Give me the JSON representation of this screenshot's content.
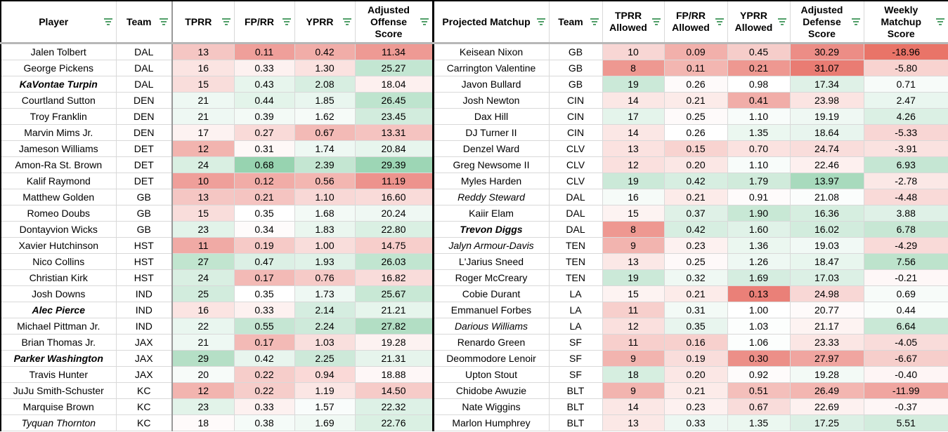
{
  "headers": [
    "Player",
    "Team",
    "TPRR",
    "FP/RR",
    "YPRR",
    "Adjusted Offense Score",
    "Projected Matchup",
    "Team",
    "TPRR Allowed",
    "FP/RR Allowed",
    "YPRR Allowed",
    "Adjusted Defense Score",
    "Weekly Matchup Score"
  ],
  "rows": [
    {
      "player": "Jalen Tolbert",
      "ps": "n",
      "team": "DAL",
      "tprr": "13",
      "fprr": "0.11",
      "yprr": "0.42",
      "aos": "11.34",
      "opp": "Keisean Nixon",
      "os": "n",
      "oteam": "GB",
      "tprra": "10",
      "fprra": "0.09",
      "yprra": "0.45",
      "ads": "30.29",
      "wms": "-18.96",
      "bg": [
        "#f5c6c3",
        "#ef9f9a",
        "#f1ada8",
        "#ee9a94",
        "#f8d6d4",
        "#f2b0ab",
        "#f6cdca",
        "#ec8d86",
        "#e97468"
      ]
    },
    {
      "player": "George Pickens",
      "ps": "n",
      "team": "DAL",
      "tprr": "16",
      "fprr": "0.33",
      "yprr": "1.30",
      "aos": "25.27",
      "opp": "Carrington Valentine",
      "os": "n",
      "oteam": "GB",
      "tprra": "8",
      "fprra": "0.11",
      "yprra": "0.21",
      "ads": "31.07",
      "wms": "-5.80",
      "bg": [
        "#fbe4e2",
        "#fdf1f0",
        "#fbe2e0",
        "#c3e6d2",
        "#ee9891",
        "#f3b6b1",
        "#ee9891",
        "#e97c73",
        "#f8d3d0"
      ]
    },
    {
      "player": "KaVontae Turpin",
      "ps": "bi",
      "team": "DAL",
      "tprr": "15",
      "fprr": "0.43",
      "yprr": "2.08",
      "aos": "18.04",
      "opp": "Javon Bullard",
      "os": "n",
      "oteam": "GB",
      "tprra": "19",
      "fprra": "0.26",
      "yprra": "0.98",
      "ads": "17.34",
      "wms": "0.71",
      "bg": [
        "#f9dddb",
        "#e7f5ed",
        "#d7eee1",
        "#fdf0ef",
        "#cbe9d8",
        "#fefafa",
        "#ffffff",
        "#dff1e7",
        "#f7fbf9"
      ]
    },
    {
      "player": "Courtland Sutton",
      "ps": "n",
      "team": "DEN",
      "tprr": "21",
      "fprr": "0.44",
      "yprr": "1.85",
      "aos": "26.45",
      "opp": "Josh Newton",
      "os": "n",
      "oteam": "CIN",
      "tprra": "14",
      "fprra": "0.21",
      "yprra": "0.41",
      "ads": "23.98",
      "wms": "2.47",
      "bg": [
        "#eef8f3",
        "#e3f4ea",
        "#e9f6ef",
        "#bee4ce",
        "#fbe7e5",
        "#fcebe9",
        "#f1ada8",
        "#fbe4e2",
        "#e9f6ef"
      ]
    },
    {
      "player": "Troy Franklin",
      "ps": "n",
      "team": "DEN",
      "tprr": "21",
      "fprr": "0.39",
      "yprr": "1.62",
      "aos": "23.45",
      "opp": "Dax Hill",
      "os": "n",
      "oteam": "CIN",
      "tprra": "17",
      "fprra": "0.25",
      "yprra": "1.10",
      "ads": "19.19",
      "wms": "4.26",
      "bg": [
        "#eef8f3",
        "#f3faf6",
        "#f6fbf8",
        "#d2ecdd",
        "#e4f4eb",
        "#fefafa",
        "#f8fcfa",
        "#eff8f3",
        "#dbf0e4"
      ]
    },
    {
      "player": "Marvin Mims Jr.",
      "ps": "n",
      "team": "DEN",
      "tprr": "17",
      "fprr": "0.27",
      "yprr": "0.67",
      "aos": "13.31",
      "opp": "DJ Turner II",
      "os": "n",
      "oteam": "CIN",
      "tprra": "14",
      "fprra": "0.26",
      "yprra": "1.35",
      "ads": "18.64",
      "wms": "-5.33",
      "bg": [
        "#fdf2f1",
        "#f9dad8",
        "#f3bab6",
        "#f5c3c0",
        "#fbe7e5",
        "#ffffff",
        "#ebf7f0",
        "#e8f5ee",
        "#f8d6d4"
      ]
    },
    {
      "player": "Jameson Williams",
      "ps": "n",
      "team": "DET",
      "tprr": "12",
      "fprr": "0.31",
      "yprr": "1.74",
      "aos": "20.84",
      "opp": "Denzel Ward",
      "os": "n",
      "oteam": "CLV",
      "tprra": "13",
      "fprra": "0.15",
      "yprra": "0.70",
      "ads": "24.74",
      "wms": "-3.91",
      "bg": [
        "#f2b4af",
        "#fef8f7",
        "#eef8f3",
        "#e7f5ed",
        "#fbe2e0",
        "#f8d3d0",
        "#fbe2e0",
        "#f9dddb",
        "#fae2e0"
      ]
    },
    {
      "player": "Amon-Ra St. Brown",
      "ps": "n",
      "team": "DET",
      "tprr": "24",
      "fprr": "0.68",
      "yprr": "2.39",
      "aos": "29.39",
      "opp": "Greg Newsome II",
      "os": "n",
      "oteam": "CLV",
      "tprra": "12",
      "fprra": "0.20",
      "yprra": "1.10",
      "ads": "22.46",
      "wms": "6.93",
      "bg": [
        "#d9efe2",
        "#97d3b0",
        "#c4e6d2",
        "#9dd6b5",
        "#fae0de",
        "#fbe7e5",
        "#f8fcfa",
        "#fdf0ef",
        "#c5e6d3"
      ]
    },
    {
      "player": "Kalif Raymond",
      "ps": "n",
      "team": "DET",
      "tprr": "10",
      "fprr": "0.12",
      "yprr": "0.56",
      "aos": "11.19",
      "opp": "Myles Harden",
      "os": "n",
      "oteam": "CLV",
      "tprra": "19",
      "fprra": "0.42",
      "yprra": "1.79",
      "ads": "13.97",
      "wms": "-2.78",
      "bg": [
        "#ef9f9a",
        "#f1aca7",
        "#f3b6b1",
        "#ed938d",
        "#cbe9d8",
        "#d7eee1",
        "#d0ebdb",
        "#a8dabd",
        "#fbe8e6"
      ]
    },
    {
      "player": "Matthew Golden",
      "ps": "n",
      "team": "GB",
      "tprr": "13",
      "fprr": "0.21",
      "yprr": "1.10",
      "aos": "16.60",
      "opp": "Reddy Steward",
      "os": "it",
      "oteam": "DAL",
      "tprra": "16",
      "fprra": "0.21",
      "yprra": "0.91",
      "ads": "21.08",
      "wms": "-4.48",
      "bg": [
        "#f5c6c3",
        "#f5c4c1",
        "#f8d8d6",
        "#f9dbd9",
        "#f6fbf8",
        "#fcebe9",
        "#fefbfb",
        "#fbfdfc",
        "#f9dad8"
      ]
    },
    {
      "player": "Romeo Doubs",
      "ps": "n",
      "team": "GB",
      "tprr": "15",
      "fprr": "0.35",
      "yprr": "1.68",
      "aos": "20.24",
      "opp": "Kaiir Elam",
      "os": "n",
      "oteam": "DAL",
      "tprra": "15",
      "fprra": "0.37",
      "yprra": "1.90",
      "ads": "16.36",
      "wms": "3.88",
      "bg": [
        "#f9dddb",
        "#ffffff",
        "#f3faf6",
        "#eff8f3",
        "#fdf3f2",
        "#dff1e7",
        "#c8e8d5",
        "#d6eee0",
        "#dff1e7"
      ]
    },
    {
      "player": "Dontayvion Wicks",
      "ps": "n",
      "team": "GB",
      "tprr": "23",
      "fprr": "0.34",
      "yprr": "1.83",
      "aos": "22.80",
      "opp": "Trevon Diggs",
      "os": "bi",
      "oteam": "DAL",
      "tprra": "8",
      "fprra": "0.42",
      "yprra": "1.60",
      "ads": "16.02",
      "wms": "6.78",
      "bg": [
        "#e2f3e9",
        "#fefbfb",
        "#eaf6ef",
        "#daf0e3",
        "#ee9891",
        "#d7eee1",
        "#e0f2e8",
        "#d2ecdd",
        "#c7e7d4"
      ]
    },
    {
      "player": "Xavier Hutchinson",
      "ps": "n",
      "team": "HST",
      "tprr": "11",
      "fprr": "0.19",
      "yprr": "1.00",
      "aos": "14.75",
      "opp": "Jalyn Armour-Davis",
      "os": "it",
      "oteam": "TEN",
      "tprra": "9",
      "fprra": "0.23",
      "yprra": "1.36",
      "ads": "19.03",
      "wms": "-4.29",
      "bg": [
        "#f0aaa5",
        "#f6cac7",
        "#f9dddb",
        "#f7cecb",
        "#f2b4af",
        "#fdf1f0",
        "#ebf7f0",
        "#f1f9f5",
        "#f9dad8"
      ]
    },
    {
      "player": "Nico Collins",
      "ps": "n",
      "team": "HST",
      "tprr": "27",
      "fprr": "0.47",
      "yprr": "1.93",
      "aos": "26.03",
      "opp": "L'Jarius Sneed",
      "os": "n",
      "oteam": "TEN",
      "tprra": "13",
      "fprra": "0.25",
      "yprra": "1.26",
      "ads": "18.47",
      "wms": "7.56",
      "bg": [
        "#c1e5cf",
        "#dcf0e5",
        "#e0f2e8",
        "#c1e5d0",
        "#fbe8e6",
        "#fef9f9",
        "#eef8f3",
        "#e8f6ee",
        "#bde3cc"
      ]
    },
    {
      "player": "Christian Kirk",
      "ps": "n",
      "team": "HST",
      "tprr": "24",
      "fprr": "0.17",
      "yprr": "0.76",
      "aos": "16.82",
      "opp": "Roger McCreary",
      "os": "n",
      "oteam": "TEN",
      "tprra": "19",
      "fprra": "0.32",
      "yprra": "1.69",
      "ads": "17.03",
      "wms": "-0.21",
      "bg": [
        "#d9efe2",
        "#f3bab6",
        "#f6cac7",
        "#f9dcda",
        "#cbe9d8",
        "#eff8f3",
        "#d5ede0",
        "#dcf0e5",
        "#fef7f7"
      ]
    },
    {
      "player": "Josh Downs",
      "ps": "n",
      "team": "IND",
      "tprr": "25",
      "fprr": "0.35",
      "yprr": "1.73",
      "aos": "25.67",
      "opp": "Cobie Durant",
      "os": "n",
      "oteam": "LA",
      "tprra": "15",
      "fprra": "0.21",
      "yprra": "0.13",
      "ads": "24.98",
      "wms": "0.69",
      "bg": [
        "#d2ecdd",
        "#ffffff",
        "#eef8f3",
        "#c8e8d5",
        "#fdf3f2",
        "#fcebe9",
        "#ea8078",
        "#f8d7d5",
        "#f7fbf9"
      ]
    },
    {
      "player": "Alec Pierce",
      "ps": "bi",
      "team": "IND",
      "tprr": "16",
      "fprr": "0.33",
      "yprr": "2.14",
      "aos": "21.21",
      "opp": "Emmanuel Forbes",
      "os": "n",
      "oteam": "LA",
      "tprra": "11",
      "fprra": "0.31",
      "yprra": "1.00",
      "ads": "20.77",
      "wms": "0.44",
      "bg": [
        "#fbe4e2",
        "#fdf1f0",
        "#d5ede0",
        "#e6f5ec",
        "#f7cfcc",
        "#f3faf6",
        "#ffffff",
        "#fefafa",
        "#fafdfb"
      ]
    },
    {
      "player": "Michael Pittman Jr.",
      "ps": "n",
      "team": "IND",
      "tprr": "22",
      "fprr": "0.55",
      "yprr": "2.24",
      "aos": "27.82",
      "opp": "Darious Williams",
      "os": "it",
      "oteam": "LA",
      "tprra": "12",
      "fprra": "0.35",
      "yprra": "1.03",
      "ads": "21.17",
      "wms": "6.64",
      "bg": [
        "#e9f6ef",
        "#c5e6d3",
        "#ceeada",
        "#b2dec4",
        "#fae0de",
        "#e8f5ee",
        "#fcfefd",
        "#fdf3f2",
        "#c9e8d6"
      ]
    },
    {
      "player": "Brian Thomas Jr.",
      "ps": "n",
      "team": "JAX",
      "tprr": "21",
      "fprr": "0.17",
      "yprr": "1.03",
      "aos": "19.28",
      "opp": "Renardo Green",
      "os": "n",
      "oteam": "SF",
      "tprra": "11",
      "fprra": "0.16",
      "yprra": "1.06",
      "ads": "23.33",
      "wms": "-4.05",
      "bg": [
        "#eef8f3",
        "#f3bab6",
        "#f9dfdd",
        "#fdf2f1",
        "#f7cfcc",
        "#f7d0cd",
        "#fcfefd",
        "#fbe6e4",
        "#f9dcda"
      ]
    },
    {
      "player": "Parker Washington",
      "ps": "bi",
      "team": "JAX",
      "tprr": "29",
      "fprr": "0.42",
      "yprr": "2.25",
      "aos": "21.31",
      "opp": "Deommodore Lenoir",
      "os": "n",
      "oteam": "SF",
      "tprra": "9",
      "fprra": "0.19",
      "yprra": "0.30",
      "ads": "27.97",
      "wms": "-6.67",
      "bg": [
        "#b5dfc6",
        "#e8f5ee",
        "#cde9d9",
        "#e6f4ec",
        "#f2b4af",
        "#f9dddb",
        "#ec8f88",
        "#f0a5a0",
        "#f6cecb"
      ]
    },
    {
      "player": "Travis Hunter",
      "ps": "n",
      "team": "JAX",
      "tprr": "20",
      "fprr": "0.22",
      "yprr": "0.94",
      "aos": "18.88",
      "opp": "Upton Stout",
      "os": "n",
      "oteam": "SF",
      "tprra": "18",
      "fprra": "0.20",
      "yprra": "0.92",
      "ads": "19.28",
      "wms": "-0.40",
      "bg": [
        "#f7fbf9",
        "#f6cdca",
        "#fad9d7",
        "#fef7f7",
        "#d6eee0",
        "#fbe7e5",
        "#fefbfb",
        "#f3faf6",
        "#fef5f5"
      ]
    },
    {
      "player": "JuJu Smith-Schuster",
      "ps": "n",
      "team": "KC",
      "tprr": "12",
      "fprr": "0.22",
      "yprr": "1.19",
      "aos": "14.50",
      "opp": "Chidobe Awuzie",
      "os": "n",
      "oteam": "BLT",
      "tprra": "9",
      "fprra": "0.21",
      "yprra": "0.51",
      "ads": "26.49",
      "wms": "-11.99",
      "bg": [
        "#f2b4af",
        "#f6cdca",
        "#fbe6e4",
        "#f6cbc8",
        "#f2b4af",
        "#fcebe9",
        "#f4bfbb",
        "#f3b6b1",
        "#f0a5a0"
      ]
    },
    {
      "player": "Marquise Brown",
      "ps": "n",
      "team": "KC",
      "tprr": "23",
      "fprr": "0.33",
      "yprr": "1.57",
      "aos": "22.32",
      "opp": "Nate Wiggins",
      "os": "n",
      "oteam": "BLT",
      "tprra": "14",
      "fprra": "0.23",
      "yprra": "0.67",
      "ads": "22.69",
      "wms": "-0.37",
      "bg": [
        "#e2f3e9",
        "#fdf1f0",
        "#f9fcfb",
        "#ddf1e6",
        "#fbe7e5",
        "#fdf1f0",
        "#f9dcda",
        "#fdf1f0",
        "#fef6f6"
      ]
    },
    {
      "player": "Tyquan Thornton",
      "ps": "it",
      "team": "KC",
      "tprr": "18",
      "fprr": "0.38",
      "yprr": "1.69",
      "aos": "22.76",
      "opp": "Marlon Humphrey",
      "os": "n",
      "oteam": "BLT",
      "tprra": "13",
      "fprra": "0.33",
      "yprra": "1.35",
      "ads": "17.25",
      "wms": "5.51",
      "bg": [
        "#fefafa",
        "#f5fbf8",
        "#f0f9f4",
        "#daf0e3",
        "#fbe8e6",
        "#edf7f2",
        "#ebf7f0",
        "#dcf0e5",
        "#d2ecdd"
      ]
    }
  ]
}
